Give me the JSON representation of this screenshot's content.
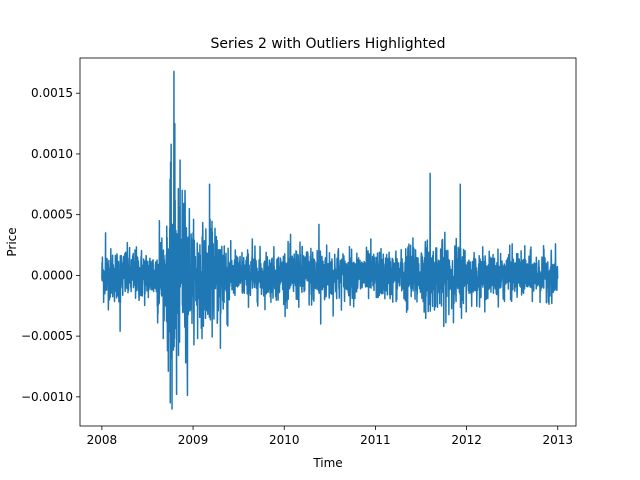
{
  "chart_data": {
    "type": "line",
    "title": "Series 2 with Outliers Highlighted",
    "xlabel": "Time",
    "ylabel": "Price",
    "xlim": [
      2007.76,
      2013.2
    ],
    "ylim": [
      -0.00124,
      0.00179
    ],
    "x_ticks": [
      2008,
      2009,
      2010,
      2011,
      2012,
      2013
    ],
    "x_tick_labels": [
      "2008",
      "2009",
      "2010",
      "2011",
      "2012",
      "2013"
    ],
    "y_ticks": [
      -0.001,
      -0.0005,
      0.0,
      0.0005,
      0.001,
      0.0015
    ],
    "y_tick_labels": [
      "−0.0010",
      "−0.0005",
      "0.0000",
      "0.0005",
      "0.0010",
      "0.0015"
    ],
    "grid": false,
    "color": "#1f77b4",
    "segments": [
      {
        "start": 2008.0,
        "end": 2008.6,
        "amplitude": 0.00012
      },
      {
        "start": 2008.6,
        "end": 2008.72,
        "amplitude": 0.0002
      },
      {
        "start": 2008.72,
        "end": 2008.95,
        "amplitude": 0.00038
      },
      {
        "start": 2008.95,
        "end": 2009.4,
        "amplitude": 0.00022
      },
      {
        "start": 2009.4,
        "end": 2010.0,
        "amplitude": 0.00011
      },
      {
        "start": 2010.0,
        "end": 2010.6,
        "amplitude": 0.00013
      },
      {
        "start": 2010.6,
        "end": 2011.3,
        "amplitude": 0.00011
      },
      {
        "start": 2011.3,
        "end": 2012.0,
        "amplitude": 0.00015
      },
      {
        "start": 2012.0,
        "end": 2013.0,
        "amplitude": 0.0001
      }
    ],
    "spikes": [
      {
        "x": 2008.04,
        "y": 0.00035
      },
      {
        "x": 2008.2,
        "y": -0.00046
      },
      {
        "x": 2008.63,
        "y": 0.00045
      },
      {
        "x": 2008.72,
        "y": -0.00062
      },
      {
        "x": 2008.75,
        "y": -0.00105
      },
      {
        "x": 2008.76,
        "y": 0.00108
      },
      {
        "x": 2008.77,
        "y": -0.0011
      },
      {
        "x": 2008.79,
        "y": 0.00168
      },
      {
        "x": 2008.8,
        "y": 0.00125
      },
      {
        "x": 2008.82,
        "y": -0.00098
      },
      {
        "x": 2008.84,
        "y": -0.00066
      },
      {
        "x": 2008.88,
        "y": 0.0007
      },
      {
        "x": 2008.92,
        "y": -0.00072
      },
      {
        "x": 2008.96,
        "y": 0.00055
      },
      {
        "x": 2009.05,
        "y": -0.00052
      },
      {
        "x": 2009.18,
        "y": 0.00075
      },
      {
        "x": 2009.3,
        "y": -0.0006
      },
      {
        "x": 2009.65,
        "y": 0.0003
      },
      {
        "x": 2010.38,
        "y": 0.00042
      },
      {
        "x": 2010.4,
        "y": -0.0004
      },
      {
        "x": 2010.95,
        "y": 0.0003
      },
      {
        "x": 2011.6,
        "y": 0.00084
      },
      {
        "x": 2011.75,
        "y": -0.00042
      },
      {
        "x": 2011.93,
        "y": 0.00075
      },
      {
        "x": 2012.2,
        "y": -0.0003
      },
      {
        "x": 2012.5,
        "y": 0.00026
      }
    ]
  }
}
